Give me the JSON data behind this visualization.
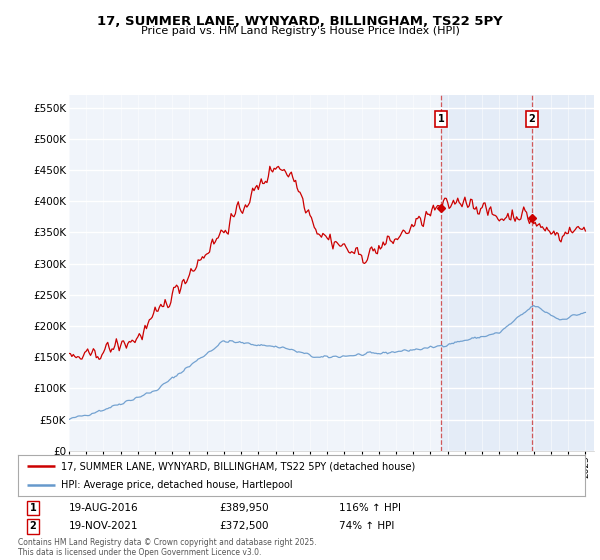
{
  "title": "17, SUMMER LANE, WYNYARD, BILLINGHAM, TS22 5PY",
  "subtitle": "Price paid vs. HM Land Registry's House Price Index (HPI)",
  "ylabel_ticks": [
    "£0",
    "£50K",
    "£100K",
    "£150K",
    "£200K",
    "£250K",
    "£300K",
    "£350K",
    "£400K",
    "£450K",
    "£500K",
    "£550K"
  ],
  "ytick_values": [
    0,
    50000,
    100000,
    150000,
    200000,
    250000,
    300000,
    350000,
    400000,
    450000,
    500000,
    550000
  ],
  "ylim": [
    0,
    570000
  ],
  "sale1_date_x": 2016.63,
  "sale1_price": 389950,
  "sale1_label": "1",
  "sale2_date_x": 2021.88,
  "sale2_price": 372500,
  "sale2_label": "2",
  "legend_line1": "17, SUMMER LANE, WYNYARD, BILLINGHAM, TS22 5PY (detached house)",
  "legend_line2": "HPI: Average price, detached house, Hartlepool",
  "footer": "Contains HM Land Registry data © Crown copyright and database right 2025.\nThis data is licensed under the Open Government Licence v3.0.",
  "line_color_red": "#cc0000",
  "line_color_blue": "#6699cc",
  "background_color": "#ffffff",
  "plot_bg_color": "#f0f4fa",
  "shade_color": "#dde8f5",
  "grid_color": "#ffffff",
  "xmin": 1995,
  "xmax": 2025.5
}
